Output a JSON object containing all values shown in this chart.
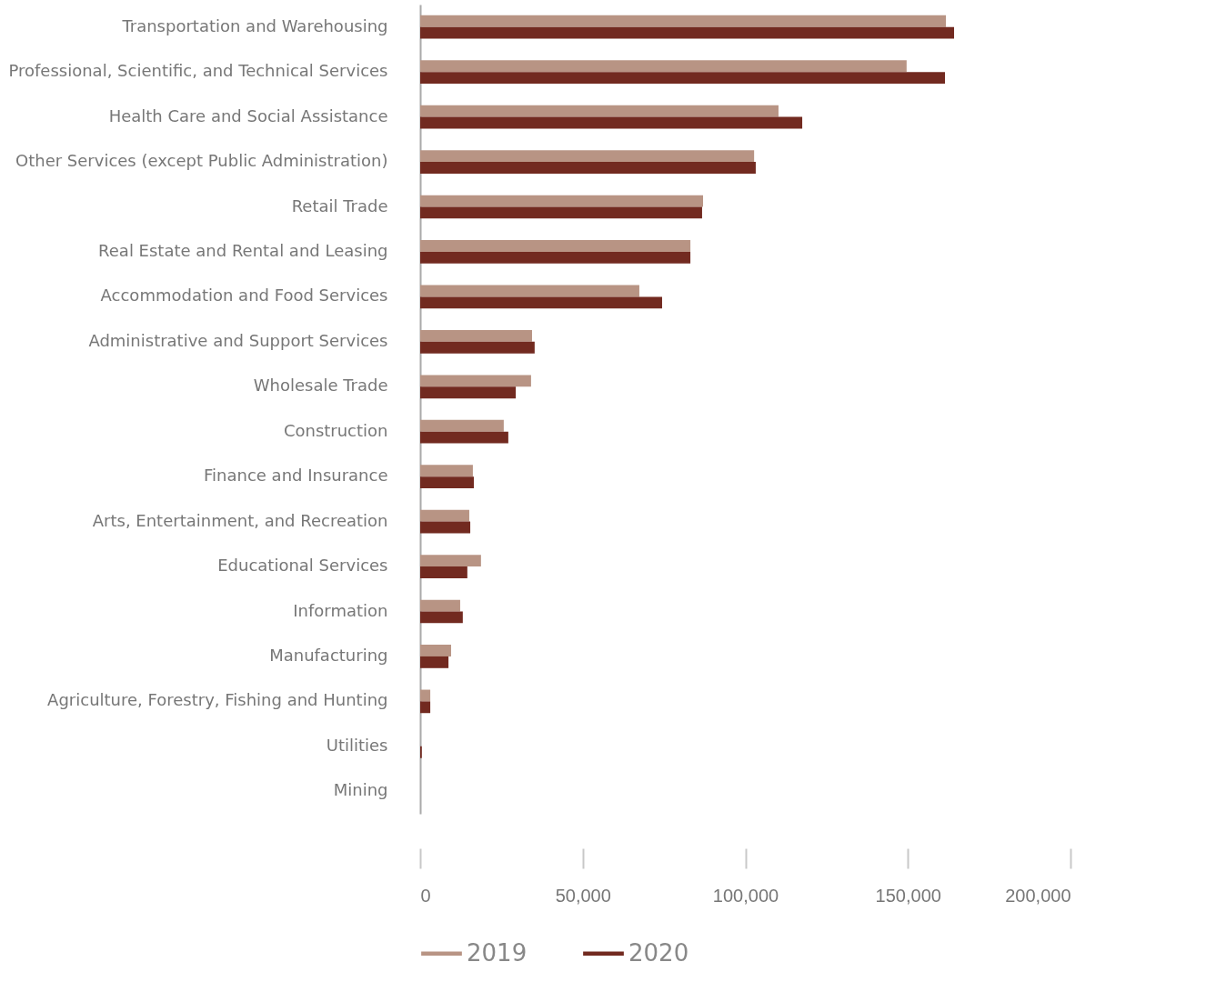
{
  "chart_data": {
    "type": "bar",
    "orientation": "horizontal",
    "categories": [
      "Transportation and Warehousing",
      "Professional, Scientific, and Technical Services",
      "Health Care and Social Assistance",
      "Other Services (except Public Administration)",
      "Retail Trade",
      "Real Estate and Rental and Leasing",
      "Accommodation and Food Services",
      "Administrative and Support Services",
      "Wholesale Trade",
      "Construction",
      "Finance and Insurance",
      "Arts, Entertainment, and Recreation",
      "Educational Services",
      "Information",
      "Manufacturing",
      "Agriculture, Forestry, Fishing and Hunting",
      "Utilities",
      "Mining"
    ],
    "series": [
      {
        "name": "2019",
        "color": "#b89484",
        "values": [
          161700,
          149600,
          110200,
          102700,
          87000,
          83100,
          67400,
          34400,
          34100,
          25700,
          16200,
          15100,
          18700,
          12300,
          9500,
          3100,
          0,
          0
        ]
      },
      {
        "name": "2020",
        "color": "#722a20",
        "values": [
          164200,
          161400,
          117500,
          103200,
          86700,
          83100,
          74400,
          35200,
          29400,
          27100,
          16500,
          15400,
          14500,
          13100,
          8700,
          3100,
          500,
          0
        ]
      }
    ],
    "xlim": [
      0,
      200000
    ],
    "xticks": [
      {
        "value": 0,
        "label": "0"
      },
      {
        "value": 50000,
        "label": "50,000"
      },
      {
        "value": 100000,
        "label": "100,000"
      },
      {
        "value": 150000,
        "label": "150,000"
      },
      {
        "value": 200000,
        "label": "200,000"
      }
    ],
    "grid": false,
    "legend": "bottom"
  }
}
